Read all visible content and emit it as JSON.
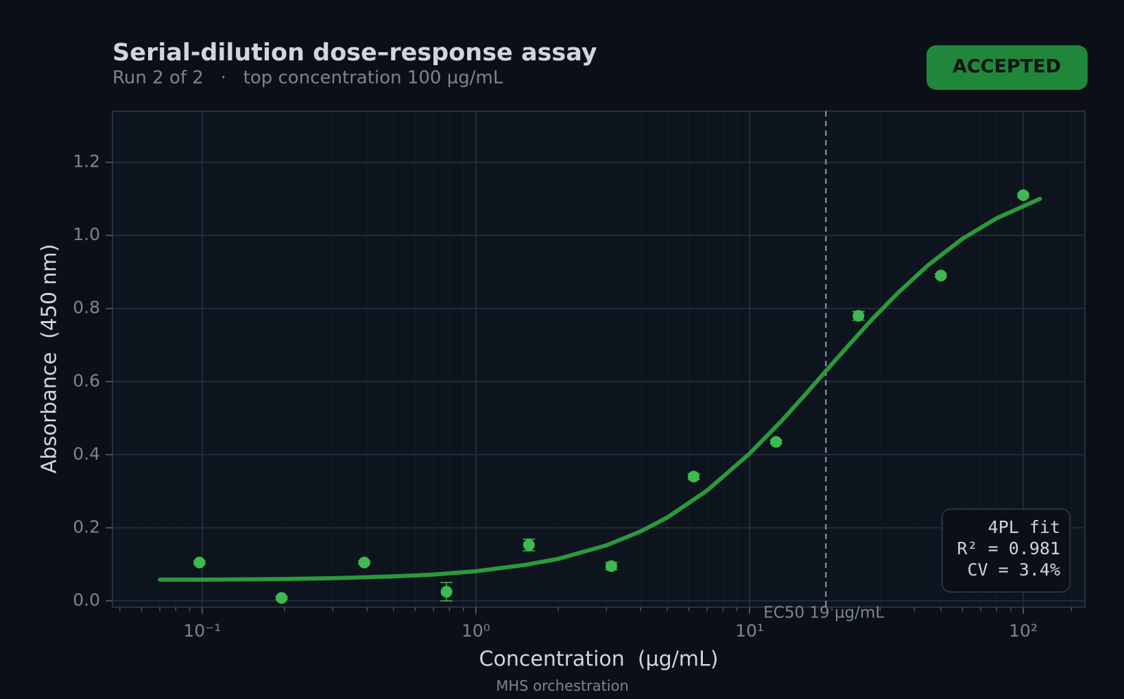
{
  "chart_data": {
    "type": "scatter",
    "title": "Serial-dilution dose–response assay",
    "subtitle": "Run 2 of 2   ·   top concentration 100 µg/mL",
    "status": "ACCEPTED",
    "xlabel": "Concentration  (µg/mL)",
    "ylabel": "Absorbance  (450 nm)",
    "footer": "MHS orchestration",
    "xscale": "log",
    "xlim": [
      0.047,
      168
    ],
    "ylim": [
      -0.017,
      1.34
    ],
    "xticks": [
      {
        "value": 0.1,
        "label": "10⁻¹"
      },
      {
        "value": 1,
        "label": "10⁰"
      },
      {
        "value": 10,
        "label": "10¹"
      },
      {
        "value": 100,
        "label": "10²"
      }
    ],
    "xminorticks": [
      0.05,
      0.06,
      0.07,
      0.08,
      0.09,
      0.2,
      0.3,
      0.4,
      0.5,
      0.6,
      0.7,
      0.8,
      0.9,
      2,
      3,
      4,
      5,
      6,
      7,
      8,
      9,
      20,
      30,
      40,
      50,
      60,
      70,
      80,
      90,
      150
    ],
    "yticks": [
      {
        "value": 0,
        "label": "0.0"
      },
      0.2,
      0.4,
      0.6,
      0.8,
      {
        "value": 1,
        "label": "1.0"
      },
      1.2
    ],
    "grid": true,
    "series": [
      {
        "kind": "points",
        "color": "#3dba4e",
        "x": [
          0.0977,
          0.195,
          0.391,
          0.781,
          1.5625,
          3.125,
          6.25,
          12.5,
          25,
          50,
          100
        ],
        "values": [
          0.105,
          0.008,
          0.105,
          0.025,
          0.153,
          0.095,
          0.34,
          0.435,
          0.78,
          0.89,
          1.11
        ],
        "errors": [
          0.004,
          0.004,
          0.004,
          0.025,
          0.016,
          0.01,
          0.008,
          0.005,
          0.012,
          0.005,
          0.005
        ]
      },
      {
        "kind": "curve",
        "color": "#2a9a3c",
        "x": [
          0.07,
          0.1,
          0.15,
          0.2,
          0.3,
          0.5,
          0.7,
          1,
          1.5,
          2,
          3,
          4,
          5,
          7,
          10,
          13,
          16,
          19,
          23,
          28,
          35,
          45,
          60,
          80,
          115
        ],
        "values": [
          0.058,
          0.058,
          0.059,
          0.06,
          0.062,
          0.067,
          0.072,
          0.081,
          0.098,
          0.115,
          0.152,
          0.19,
          0.228,
          0.302,
          0.403,
          0.49,
          0.565,
          0.629,
          0.699,
          0.77,
          0.844,
          0.919,
          0.991,
          1.047,
          1.1
        ]
      }
    ],
    "ec50": {
      "value": 19,
      "label": "EC50 19 µg/mL"
    },
    "fit_box": [
      "4PL fit",
      "R² = 0.981",
      "CV = 3.4%"
    ]
  }
}
